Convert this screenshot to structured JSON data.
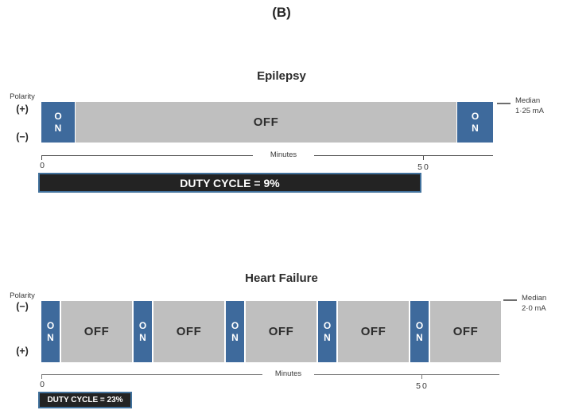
{
  "figure_label": "(B)",
  "colors": {
    "on_blue": "#3E6A9C",
    "off_gray": "#BFBFBF",
    "duty_bg": "#232323",
    "duty_border": "#41719C"
  },
  "panels": {
    "epilepsy": {
      "title": "Epilepsy",
      "polarity": {
        "label": "Polarity",
        "top": "(+)",
        "bottom": "(−)"
      },
      "segments": [
        {
          "type": "on",
          "label": "ON"
        },
        {
          "type": "off",
          "label": "OFF"
        },
        {
          "type": "on",
          "label": "ON"
        }
      ],
      "median": {
        "label": "Median",
        "value": "1·25 mA"
      },
      "axis": {
        "label": "Minutes",
        "tick_start": "0",
        "tick_end": "50"
      },
      "duty_cycle": "DUTY CYCLE = 9%"
    },
    "heart_failure": {
      "title": "Heart Failure",
      "polarity": {
        "label": "Polarity",
        "top": "(−)",
        "bottom": "(+)"
      },
      "segments": [
        {
          "type": "on",
          "label": "ON"
        },
        {
          "type": "off",
          "label": "OFF"
        },
        {
          "type": "on",
          "label": "ON"
        },
        {
          "type": "off",
          "label": "OFF"
        },
        {
          "type": "on",
          "label": "ON"
        },
        {
          "type": "off",
          "label": "OFF"
        },
        {
          "type": "on",
          "label": "ON"
        },
        {
          "type": "off",
          "label": "OFF"
        },
        {
          "type": "on",
          "label": "ON"
        },
        {
          "type": "off",
          "label": "OFF"
        }
      ],
      "median": {
        "label": "Median",
        "value": "2·0 mA"
      },
      "axis": {
        "label": "Minutes",
        "tick_start": "0",
        "tick_end": "50"
      },
      "duty_cycle": "DUTY CYCLE = 23%"
    }
  }
}
